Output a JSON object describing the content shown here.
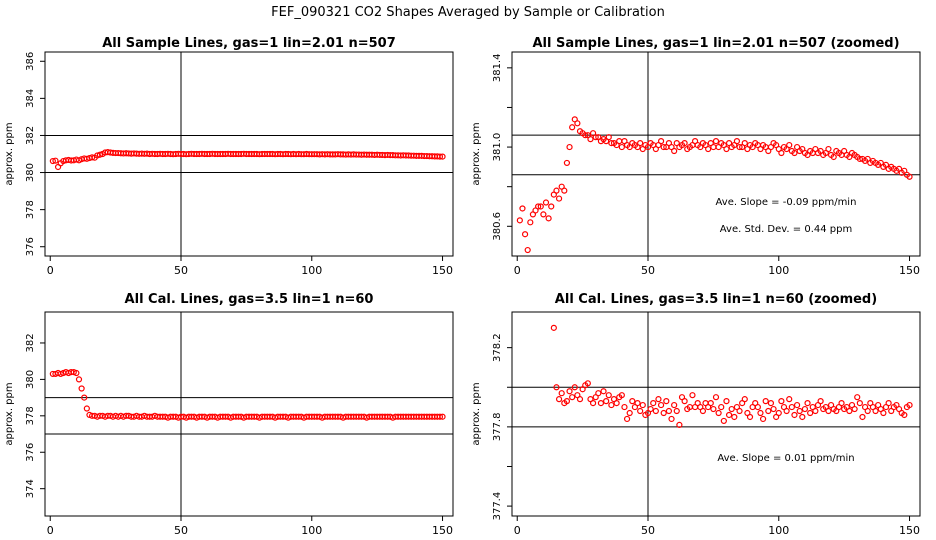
{
  "figure": {
    "title": "FEF_090321  CO2 Shapes Averaged by Sample or Calibration"
  },
  "chart_data": [
    {
      "type": "scatter",
      "title": "All Sample Lines, gas=1 lin=2.01 n=507",
      "xlabel": "",
      "ylabel": "approx. ppm",
      "xlim": [
        -2,
        154
      ],
      "ylim": [
        375.5,
        386.5
      ],
      "xticks": [
        0,
        50,
        100,
        150
      ],
      "yticks": [
        376,
        378,
        380,
        382,
        384,
        386
      ],
      "hlines": [
        380,
        382
      ],
      "vlines": [
        50
      ],
      "annotations": [],
      "color": "#ff0000",
      "x": [
        1,
        2,
        3,
        4,
        5,
        6,
        7,
        8,
        9,
        10,
        11,
        12,
        13,
        14,
        15,
        16,
        17,
        18,
        19,
        20,
        21,
        22,
        23,
        24,
        25,
        26,
        27,
        28,
        29,
        30,
        31,
        32,
        33,
        34,
        35,
        36,
        37,
        38,
        39,
        40,
        41,
        42,
        43,
        44,
        45,
        46,
        47,
        48,
        49,
        50,
        51,
        52,
        53,
        54,
        55,
        56,
        57,
        58,
        59,
        60,
        61,
        62,
        63,
        64,
        65,
        66,
        67,
        68,
        69,
        70,
        71,
        72,
        73,
        74,
        75,
        76,
        77,
        78,
        79,
        80,
        81,
        82,
        83,
        84,
        85,
        86,
        87,
        88,
        89,
        90,
        91,
        92,
        93,
        94,
        95,
        96,
        97,
        98,
        99,
        100,
        101,
        102,
        103,
        104,
        105,
        106,
        107,
        108,
        109,
        110,
        111,
        112,
        113,
        114,
        115,
        116,
        117,
        118,
        119,
        120,
        121,
        122,
        123,
        124,
        125,
        126,
        127,
        128,
        129,
        130,
        131,
        132,
        133,
        134,
        135,
        136,
        137,
        138,
        139,
        140,
        141,
        142,
        143,
        144,
        145,
        146,
        147,
        148,
        149,
        150
      ],
      "y": [
        380.62,
        380.64,
        380.3,
        380.5,
        380.62,
        380.66,
        380.68,
        380.65,
        380.66,
        380.7,
        380.66,
        380.72,
        380.76,
        380.74,
        380.78,
        380.82,
        380.8,
        380.92,
        380.96,
        381.0,
        381.08,
        381.1,
        381.08,
        381.06,
        381.05,
        381.05,
        381.04,
        381.03,
        381.04,
        381.03,
        381.02,
        381.03,
        381.02,
        381.01,
        381.02,
        381.01,
        381.02,
        381.0,
        381.01,
        381.0,
        381.0,
        381.01,
        381.0,
        381.0,
        381.01,
        381.0,
        380.99,
        381.0,
        381.01,
        381.0,
        381.0,
        380.99,
        381.0,
        381.01,
        381.0,
        381.0,
        381.0,
        381.01,
        381.0,
        381.0,
        381.0,
        381.01,
        381.0,
        381.0,
        381.0,
        381.0,
        381.0,
        381.01,
        381.0,
        381.0,
        381.0,
        381.0,
        381.0,
        381.01,
        381.0,
        381.0,
        381.0,
        381.0,
        381.0,
        380.99,
        381.0,
        381.0,
        381.0,
        381.0,
        381.0,
        380.99,
        381.0,
        381.0,
        380.99,
        381.0,
        381.0,
        380.99,
        381.0,
        380.99,
        381.0,
        380.99,
        380.99,
        381.0,
        380.99,
        380.99,
        380.99,
        380.99,
        380.98,
        380.99,
        380.98,
        380.99,
        380.98,
        380.98,
        380.98,
        380.99,
        380.98,
        380.98,
        380.97,
        380.98,
        380.97,
        380.98,
        380.97,
        380.97,
        380.96,
        380.97,
        380.96,
        380.96,
        380.96,
        380.95,
        380.96,
        380.95,
        380.95,
        380.94,
        380.95,
        380.94,
        380.94,
        380.93,
        380.93,
        380.92,
        380.93,
        380.92,
        380.92,
        380.91,
        380.91,
        380.9,
        380.9,
        380.9,
        380.89,
        380.89,
        380.88,
        380.88,
        380.87,
        380.87,
        380.86,
        380.86
      ]
    },
    {
      "type": "scatter",
      "title": "All Sample Lines, gas=1 lin=2.01 n=507 (zoomed)",
      "xlabel": "",
      "ylabel": "approx. ppm",
      "xlim": [
        -2,
        154
      ],
      "ylim": [
        380.45,
        381.48
      ],
      "xticks": [
        0,
        50,
        100,
        150
      ],
      "yticks": [
        380.6,
        380.8,
        381.0,
        381.2,
        381.4
      ],
      "yticklabels": [
        "380.6",
        "",
        "381.0",
        "",
        "381.4"
      ],
      "hlines": [
        380.86,
        381.06
      ],
      "vlines": [
        50
      ],
      "annotations": [
        "Ave. Slope =  -0.09  ppm/min",
        "Ave. Std. Dev. =  0.44  ppm"
      ],
      "color": "#ff0000",
      "x": [
        1,
        2,
        3,
        4,
        5,
        6,
        7,
        8,
        9,
        10,
        11,
        12,
        13,
        14,
        15,
        16,
        17,
        18,
        19,
        20,
        21,
        22,
        23,
        24,
        25,
        26,
        27,
        28,
        29,
        30,
        31,
        32,
        33,
        34,
        35,
        36,
        37,
        38,
        39,
        40,
        41,
        42,
        43,
        44,
        45,
        46,
        47,
        48,
        49,
        50,
        51,
        52,
        53,
        54,
        55,
        56,
        57,
        58,
        59,
        60,
        61,
        62,
        63,
        64,
        65,
        66,
        67,
        68,
        69,
        70,
        71,
        72,
        73,
        74,
        75,
        76,
        77,
        78,
        79,
        80,
        81,
        82,
        83,
        84,
        85,
        86,
        87,
        88,
        89,
        90,
        91,
        92,
        93,
        94,
        95,
        96,
        97,
        98,
        99,
        100,
        101,
        102,
        103,
        104,
        105,
        106,
        107,
        108,
        109,
        110,
        111,
        112,
        113,
        114,
        115,
        116,
        117,
        118,
        119,
        120,
        121,
        122,
        123,
        124,
        125,
        126,
        127,
        128,
        129,
        130,
        131,
        132,
        133,
        134,
        135,
        136,
        137,
        138,
        139,
        140,
        141,
        142,
        143,
        144,
        145,
        146,
        147,
        148,
        149,
        150
      ],
      "y": [
        380.63,
        380.69,
        380.56,
        380.48,
        380.62,
        380.66,
        380.68,
        380.7,
        380.7,
        380.66,
        380.72,
        380.64,
        380.7,
        380.76,
        380.78,
        380.74,
        380.8,
        380.78,
        380.92,
        381.0,
        381.1,
        381.14,
        381.12,
        381.08,
        381.07,
        381.06,
        381.06,
        381.04,
        381.07,
        381.05,
        381.05,
        381.03,
        381.04,
        381.03,
        381.05,
        381.02,
        381.02,
        381.01,
        381.03,
        381.0,
        381.03,
        381.01,
        381.0,
        381.02,
        381.01,
        381.0,
        381.02,
        380.99,
        381.01,
        381.0,
        381.02,
        381.01,
        380.99,
        381.01,
        381.03,
        381.0,
        381.0,
        381.02,
        381.0,
        380.98,
        381.02,
        381.0,
        381.01,
        381.02,
        380.99,
        381.0,
        381.01,
        381.03,
        381.01,
        381.0,
        381.02,
        381.01,
        380.99,
        381.02,
        381.0,
        381.03,
        381.0,
        381.02,
        381.01,
        380.99,
        381.02,
        381.0,
        381.01,
        381.03,
        381.0,
        381.0,
        381.02,
        380.99,
        381.01,
        381.0,
        381.02,
        381.01,
        380.99,
        381.01,
        381.0,
        380.98,
        381.0,
        381.02,
        381.01,
        380.99,
        380.97,
        381.0,
        380.99,
        381.01,
        380.98,
        380.97,
        381.0,
        380.98,
        380.99,
        380.97,
        380.96,
        380.98,
        380.97,
        380.99,
        380.97,
        380.98,
        380.96,
        380.97,
        380.99,
        380.96,
        380.95,
        380.98,
        380.97,
        380.96,
        380.98,
        380.96,
        380.95,
        380.97,
        380.96,
        380.95,
        380.94,
        380.94,
        380.93,
        380.94,
        380.92,
        380.93,
        380.92,
        380.91,
        380.92,
        380.9,
        380.91,
        380.89,
        380.9,
        380.89,
        380.88,
        380.89,
        380.87,
        380.88,
        380.86,
        380.85
      ]
    },
    {
      "type": "scatter",
      "title": "All Cal. Lines, gas=3.5 lin=1 n=60",
      "xlabel": "",
      "ylabel": "approx. ppm",
      "xlim": [
        -2,
        154
      ],
      "ylim": [
        372.5,
        383.7
      ],
      "xticks": [
        0,
        50,
        100,
        150
      ],
      "yticks": [
        374,
        376,
        378,
        380,
        382
      ],
      "hlines": [
        377,
        379
      ],
      "vlines": [
        50
      ],
      "annotations": [],
      "color": "#ff0000",
      "x": [
        1,
        2,
        3,
        4,
        5,
        6,
        7,
        8,
        9,
        10,
        11,
        12,
        13,
        14,
        15,
        16,
        17,
        18,
        19,
        20,
        21,
        22,
        23,
        24,
        25,
        26,
        27,
        28,
        29,
        30,
        31,
        32,
        33,
        34,
        35,
        36,
        37,
        38,
        39,
        40,
        41,
        42,
        43,
        44,
        45,
        46,
        47,
        48,
        49,
        50,
        51,
        52,
        53,
        54,
        55,
        56,
        57,
        58,
        59,
        60,
        61,
        62,
        63,
        64,
        65,
        66,
        67,
        68,
        69,
        70,
        71,
        72,
        73,
        74,
        75,
        76,
        77,
        78,
        79,
        80,
        81,
        82,
        83,
        84,
        85,
        86,
        87,
        88,
        89,
        90,
        91,
        92,
        93,
        94,
        95,
        96,
        97,
        98,
        99,
        100,
        101,
        102,
        103,
        104,
        105,
        106,
        107,
        108,
        109,
        110,
        111,
        112,
        113,
        114,
        115,
        116,
        117,
        118,
        119,
        120,
        121,
        122,
        123,
        124,
        125,
        126,
        127,
        128,
        129,
        130,
        131,
        132,
        133,
        134,
        135,
        136,
        137,
        138,
        139,
        140,
        141,
        142,
        143,
        144,
        145,
        146,
        147,
        148,
        149,
        150
      ],
      "y": [
        380.3,
        380.3,
        380.35,
        380.3,
        380.35,
        380.4,
        380.35,
        380.4,
        380.4,
        380.35,
        380.0,
        379.5,
        379.0,
        378.4,
        378.05,
        378.0,
        378.0,
        377.95,
        378.0,
        378.0,
        377.95,
        378.0,
        378.0,
        377.95,
        378.0,
        377.95,
        378.0,
        377.95,
        378.0,
        378.0,
        377.95,
        377.95,
        378.0,
        377.95,
        377.95,
        378.0,
        377.95,
        377.95,
        377.95,
        378.0,
        377.95,
        377.95,
        377.95,
        377.95,
        377.9,
        377.95,
        377.95,
        377.95,
        377.9,
        377.95,
        377.95,
        377.9,
        377.95,
        377.95,
        377.95,
        377.9,
        377.95,
        377.95,
        377.95,
        377.9,
        377.95,
        377.95,
        377.95,
        377.9,
        377.95,
        377.95,
        377.95,
        377.95,
        377.9,
        377.95,
        377.95,
        377.95,
        377.95,
        377.9,
        377.95,
        377.95,
        377.95,
        377.95,
        377.95,
        377.9,
        377.95,
        377.95,
        377.95,
        377.95,
        377.95,
        377.9,
        377.95,
        377.95,
        377.95,
        377.95,
        377.9,
        377.95,
        377.95,
        377.95,
        377.95,
        377.95,
        377.9,
        377.95,
        377.95,
        377.95,
        377.95,
        377.95,
        377.95,
        377.9,
        377.95,
        377.95,
        377.95,
        377.95,
        377.95,
        377.95,
        377.95,
        377.9,
        377.95,
        377.95,
        377.95,
        377.95,
        377.95,
        377.95,
        377.95,
        377.95,
        377.9,
        377.95,
        377.95,
        377.95,
        377.95,
        377.95,
        377.95,
        377.95,
        377.95,
        377.95,
        377.9,
        377.95,
        377.95,
        377.95,
        377.95,
        377.95,
        377.95,
        377.95,
        377.95,
        377.95,
        377.95,
        377.95,
        377.95,
        377.95,
        377.95,
        377.95,
        377.95,
        377.95,
        377.95,
        377.95
      ]
    },
    {
      "type": "scatter",
      "title": "All Cal. Lines, gas=3.5 lin=1 n=60 (zoomed)",
      "xlabel": "",
      "ylabel": "approx. ppm",
      "xlim": [
        -2,
        154
      ],
      "ylim": [
        377.35,
        378.38
      ],
      "xticks": [
        0,
        50,
        100,
        150
      ],
      "yticks": [
        377.4,
        377.6,
        377.8,
        378.0,
        378.2
      ],
      "yticklabels": [
        "377.4",
        "",
        "377.8",
        "",
        "378.2"
      ],
      "hlines": [
        377.8,
        378.0
      ],
      "vlines": [
        50
      ],
      "annotations": [
        "Ave. Slope =  0.01  ppm/min"
      ],
      "color": "#ff0000",
      "x": [
        14,
        15,
        16,
        17,
        18,
        19,
        20,
        21,
        22,
        23,
        24,
        25,
        26,
        27,
        28,
        29,
        30,
        31,
        32,
        33,
        34,
        35,
        36,
        37,
        38,
        39,
        40,
        41,
        42,
        43,
        44,
        45,
        46,
        47,
        48,
        49,
        50,
        51,
        52,
        53,
        54,
        55,
        56,
        57,
        58,
        59,
        60,
        61,
        62,
        63,
        64,
        65,
        66,
        67,
        68,
        69,
        70,
        71,
        72,
        73,
        74,
        75,
        76,
        77,
        78,
        79,
        80,
        81,
        82,
        83,
        84,
        85,
        86,
        87,
        88,
        89,
        90,
        91,
        92,
        93,
        94,
        95,
        96,
        97,
        98,
        99,
        100,
        101,
        102,
        103,
        104,
        105,
        106,
        107,
        108,
        109,
        110,
        111,
        112,
        113,
        114,
        115,
        116,
        117,
        118,
        119,
        120,
        121,
        122,
        123,
        124,
        125,
        126,
        127,
        128,
        129,
        130,
        131,
        132,
        133,
        134,
        135,
        136,
        137,
        138,
        139,
        140,
        141,
        142,
        143,
        144,
        145,
        146,
        147,
        148,
        149,
        150
      ],
      "y": [
        378.3,
        378.0,
        377.94,
        377.97,
        377.92,
        377.93,
        377.98,
        377.95,
        378.0,
        377.96,
        377.94,
        377.99,
        378.01,
        378.02,
        377.94,
        377.92,
        377.95,
        377.97,
        377.92,
        377.98,
        377.93,
        377.96,
        377.91,
        377.94,
        377.92,
        377.95,
        377.96,
        377.9,
        377.84,
        377.87,
        377.93,
        377.9,
        377.92,
        377.88,
        377.91,
        377.86,
        377.87,
        377.89,
        377.92,
        377.88,
        377.94,
        377.91,
        377.87,
        377.93,
        377.88,
        377.84,
        377.91,
        377.88,
        377.81,
        377.95,
        377.93,
        377.89,
        377.9,
        377.96,
        377.9,
        377.92,
        377.9,
        377.88,
        377.92,
        377.9,
        377.92,
        377.89,
        377.95,
        377.87,
        377.9,
        377.83,
        377.93,
        377.86,
        377.89,
        377.85,
        377.9,
        377.88,
        377.92,
        377.94,
        377.87,
        377.85,
        377.9,
        377.92,
        377.9,
        377.87,
        377.84,
        377.93,
        377.88,
        377.92,
        377.89,
        377.85,
        377.87,
        377.93,
        377.9,
        377.88,
        377.94,
        377.9,
        377.86,
        377.91,
        377.88,
        377.85,
        377.89,
        377.92,
        377.87,
        377.9,
        377.88,
        377.91,
        377.93,
        377.89,
        377.9,
        377.88,
        377.91,
        377.89,
        377.88,
        377.9,
        377.92,
        377.89,
        377.9,
        377.88,
        377.91,
        377.89,
        377.95,
        377.92,
        377.85,
        377.9,
        377.88,
        377.92,
        377.9,
        377.88,
        377.91,
        377.89,
        377.87,
        377.9,
        377.92,
        377.88,
        377.9,
        377.91,
        377.89,
        377.87,
        377.86,
        377.9,
        377.91
      ]
    }
  ]
}
